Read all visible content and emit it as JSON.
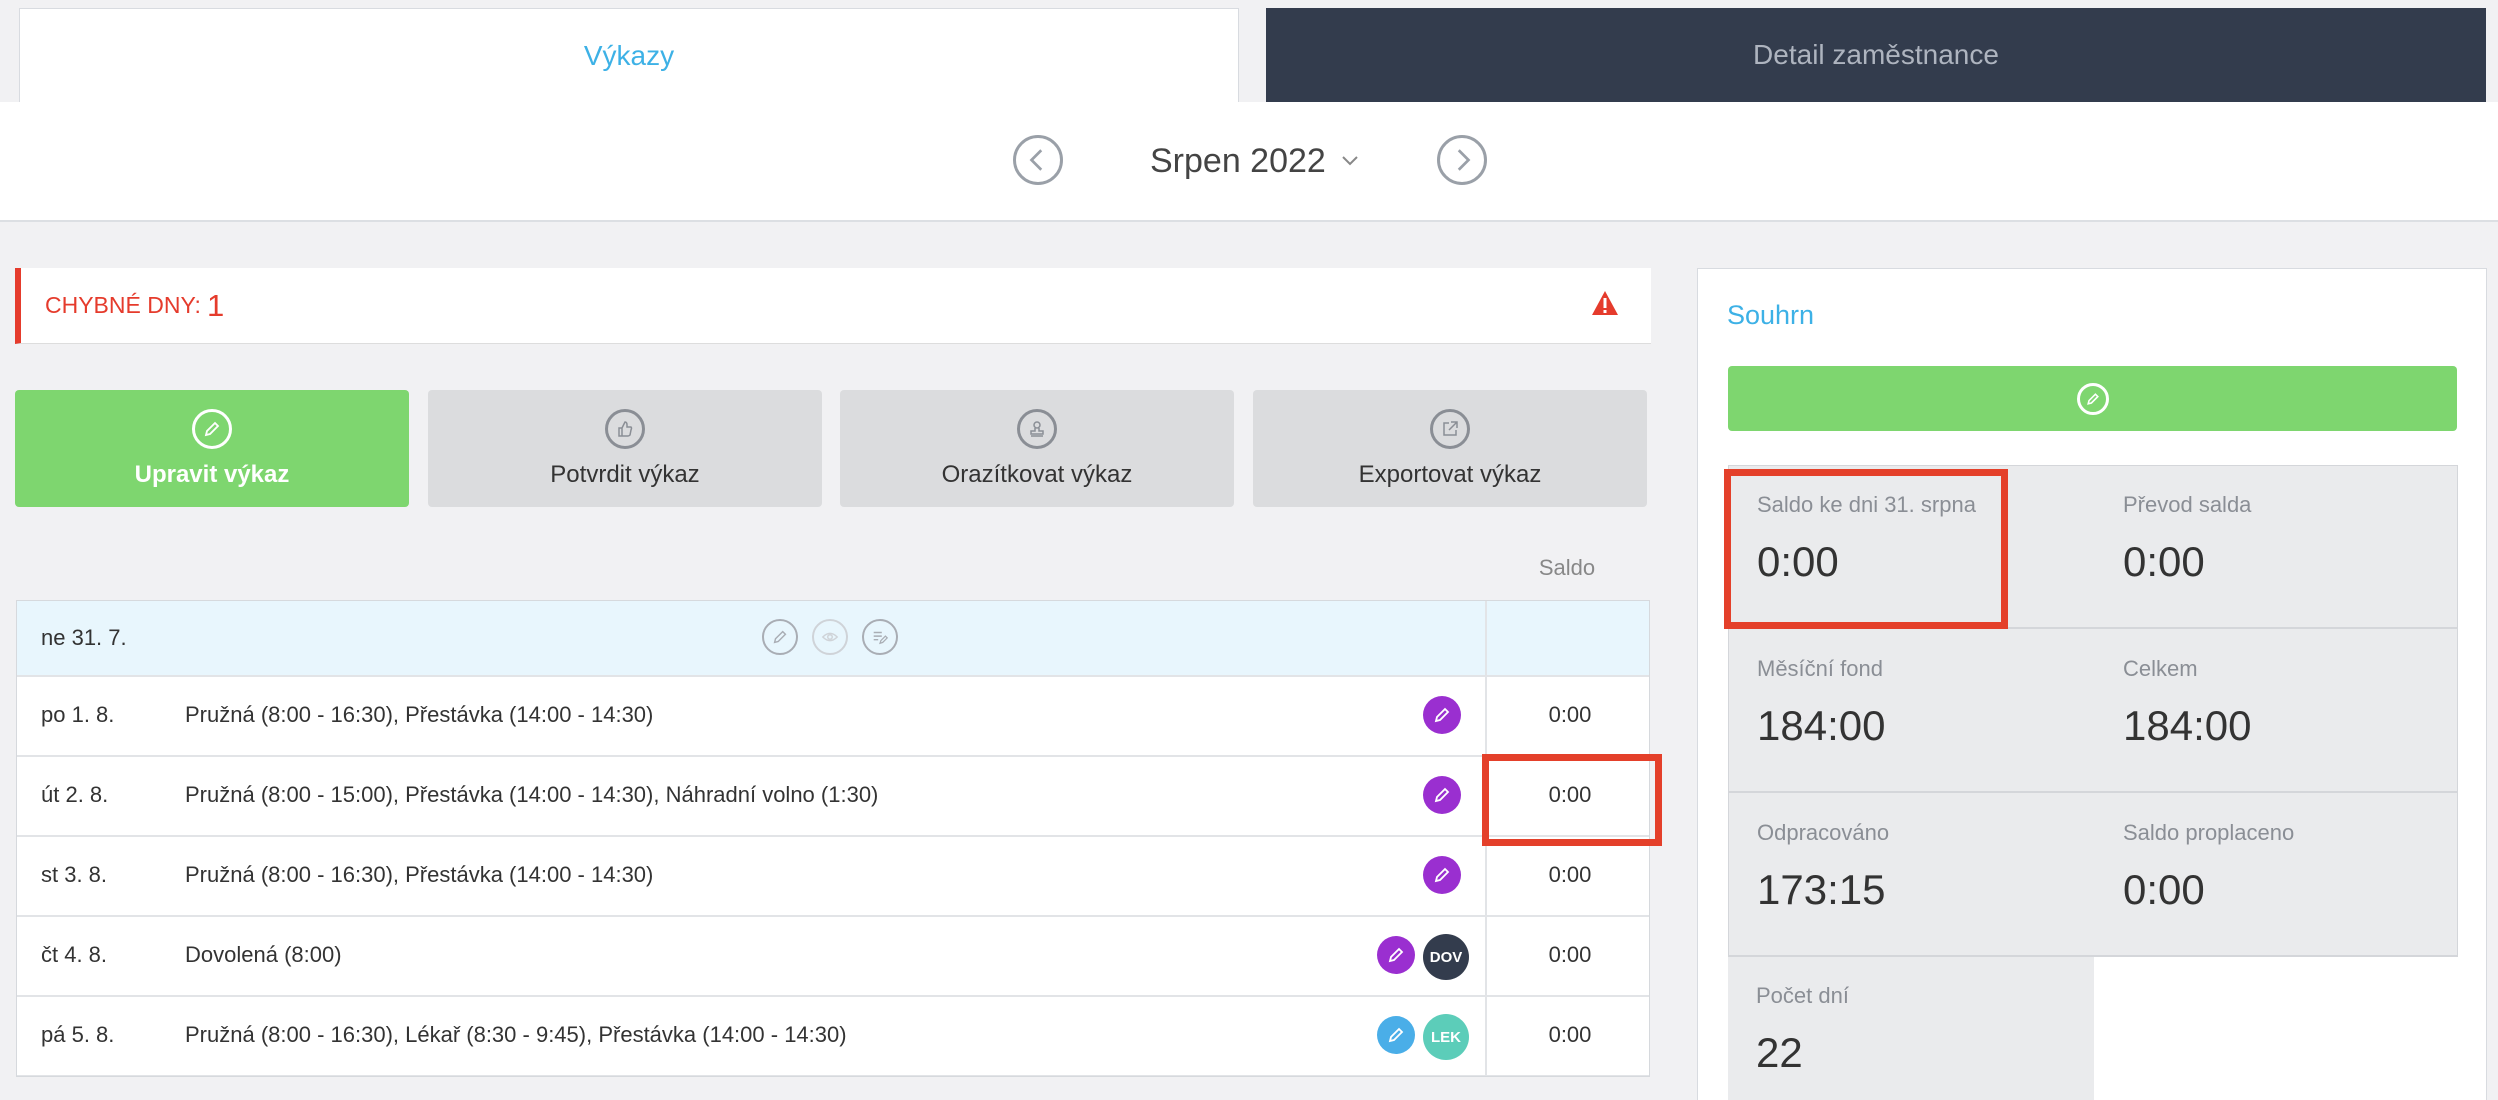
{
  "tabs": [
    {
      "label": "Výkazy",
      "active": true
    },
    {
      "label": "Detail zaměstnance",
      "active": false
    }
  ],
  "month_nav": {
    "label": "Srpen 2022"
  },
  "errors": {
    "label": "CHYBNÉ DNY:",
    "count": "1"
  },
  "actions": {
    "edit": "Upravit výkaz",
    "confirm": "Potvrdit výkaz",
    "stamp": "Orazítkovat výkaz",
    "export": "Exportovat výkaz"
  },
  "table": {
    "saldo_header": "Saldo",
    "week_row": {
      "date": "ne 31. 7."
    },
    "rows": [
      {
        "date": "po 1. 8.",
        "desc": "Pružná (8:00 - 16:30), Přestávka (14:00 - 14:30)",
        "saldo": "0:00"
      },
      {
        "date": "út 2. 8.",
        "desc": "Pružná (8:00 - 15:00), Přestávka (14:00 - 14:30), Náhradní volno (1:30)",
        "saldo": "0:00"
      },
      {
        "date": "st 3. 8.",
        "desc": "Pružná (8:00 - 16:30), Přestávka (14:00 - 14:30)",
        "saldo": "0:00"
      },
      {
        "date": "čt 4. 8.",
        "desc": "Dovolená (8:00)",
        "saldo": "0:00",
        "badge": "DOV"
      },
      {
        "date": "pá 5. 8.",
        "desc": "Pružná (8:00 - 16:30), Lékař (8:30 - 9:45), Přestávka (14:00 - 14:30)",
        "saldo": "0:00",
        "badge": "LEK"
      }
    ]
  },
  "summary": {
    "title": "Souhrn",
    "items": [
      {
        "label": "Saldo ke dni 31. srpna",
        "value": "0:00"
      },
      {
        "label": "Převod salda",
        "value": "0:00"
      },
      {
        "label": "Měsíční fond",
        "value": "184:00"
      },
      {
        "label": "Celkem",
        "value": "184:00"
      },
      {
        "label": "Odpracováno",
        "value": "173:15"
      },
      {
        "label": "Saldo proplaceno",
        "value": "0:00"
      },
      {
        "label": "Počet dní",
        "value": "22"
      }
    ]
  },
  "colors": {
    "accent_blue": "#3db1e6",
    "green": "#7ed66f",
    "error_red": "#e53b2c",
    "dark_tab": "#333c4d",
    "purple_edit": "#9a2fd0"
  }
}
